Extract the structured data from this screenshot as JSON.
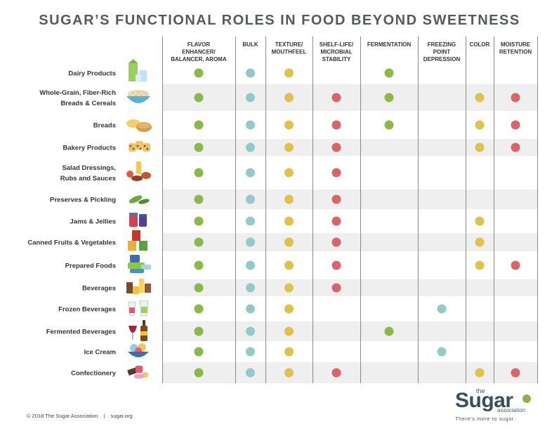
{
  "title": "SUGAR’S FUNCTIONAL ROLES IN FOOD BEYOND SWEETNESS",
  "colors": {
    "green": "#8ab84a",
    "teal": "#93c9c8",
    "yellow": "#dfc24b",
    "red": "#d7656a",
    "band": "#efefef"
  },
  "chart_data": {
    "type": "table",
    "title": "SUGAR’S FUNCTIONAL ROLES IN FOOD BEYOND SWEETNESS",
    "columns": [
      {
        "label": [
          "FLAVOR",
          "ENHANCER/",
          "BALANCER, AROMA"
        ],
        "color": "green"
      },
      {
        "label": [
          "BULK"
        ],
        "color": "teal"
      },
      {
        "label": [
          "TEXTURE/",
          "MOUTHFEEL"
        ],
        "color": "yellow"
      },
      {
        "label": [
          "SHELF-LIFE/",
          "MICROBIAL",
          "STABILITY"
        ],
        "color": "red"
      },
      {
        "label": [
          "FERMENTATION"
        ],
        "color": "green"
      },
      {
        "label": [
          "FREEZING",
          "POINT",
          "DEPRESSION"
        ],
        "color": "teal"
      },
      {
        "label": [
          "COLOR"
        ],
        "color": "yellow"
      },
      {
        "label": [
          "MOISTURE",
          "RETENTION"
        ],
        "color": "red"
      }
    ],
    "rows": [
      {
        "label": [
          "Dairy Products"
        ],
        "icon": "dairy-icon",
        "marks": [
          1,
          1,
          1,
          0,
          1,
          0,
          0,
          0
        ]
      },
      {
        "label": [
          "Whole-Grain, Fiber-Rich",
          "Breads & Cereals"
        ],
        "icon": "cereal-bowl-icon",
        "marks": [
          1,
          1,
          1,
          1,
          1,
          0,
          1,
          1
        ]
      },
      {
        "label": [
          "Breads"
        ],
        "icon": "bread-icon",
        "marks": [
          1,
          1,
          1,
          1,
          1,
          0,
          1,
          1
        ]
      },
      {
        "label": [
          "Bakery Products"
        ],
        "icon": "muffin-icon",
        "marks": [
          1,
          1,
          1,
          1,
          0,
          0,
          1,
          1
        ]
      },
      {
        "label": [
          "Salad Dressings,",
          "Rubs and Sauces"
        ],
        "icon": "sauce-icon",
        "marks": [
          1,
          1,
          1,
          1,
          0,
          0,
          0,
          0
        ]
      },
      {
        "label": [
          "Preserves & Pickling"
        ],
        "icon": "pickle-icon",
        "marks": [
          1,
          1,
          1,
          1,
          0,
          0,
          0,
          0
        ]
      },
      {
        "label": [
          "Jams & Jellies"
        ],
        "icon": "jam-jar-icon",
        "marks": [
          1,
          1,
          1,
          1,
          0,
          0,
          1,
          0
        ]
      },
      {
        "label": [
          "Canned Fruits & Vegetables"
        ],
        "icon": "canned-food-icon",
        "marks": [
          1,
          1,
          1,
          1,
          0,
          0,
          1,
          0
        ]
      },
      {
        "label": [
          "Prepared Foods"
        ],
        "icon": "prepared-food-icon",
        "marks": [
          1,
          1,
          1,
          1,
          0,
          0,
          1,
          1
        ]
      },
      {
        "label": [
          "Beverages"
        ],
        "icon": "beverages-icon",
        "marks": [
          1,
          1,
          1,
          1,
          0,
          0,
          0,
          0
        ]
      },
      {
        "label": [
          "Frozen Beverages"
        ],
        "icon": "frozen-drink-icon",
        "marks": [
          1,
          1,
          1,
          0,
          0,
          1,
          0,
          0
        ]
      },
      {
        "label": [
          "Fermented Beverages"
        ],
        "icon": "wine-bottle-icon",
        "marks": [
          1,
          1,
          1,
          0,
          1,
          0,
          0,
          0
        ]
      },
      {
        "label": [
          "Ice Cream"
        ],
        "icon": "ice-cream-icon",
        "marks": [
          1,
          1,
          1,
          0,
          0,
          1,
          0,
          0
        ]
      },
      {
        "label": [
          "Confectionery"
        ],
        "icon": "candy-icon",
        "marks": [
          1,
          1,
          1,
          1,
          0,
          0,
          1,
          1
        ]
      }
    ]
  },
  "footer": {
    "copyright": "© 2018 The Sugar Association",
    "separator": "|",
    "website": "sugar.org"
  },
  "logo": {
    "the": "the",
    "sugar": "Sugar",
    "association": "association",
    "tagline": "There’s more to sugar."
  }
}
